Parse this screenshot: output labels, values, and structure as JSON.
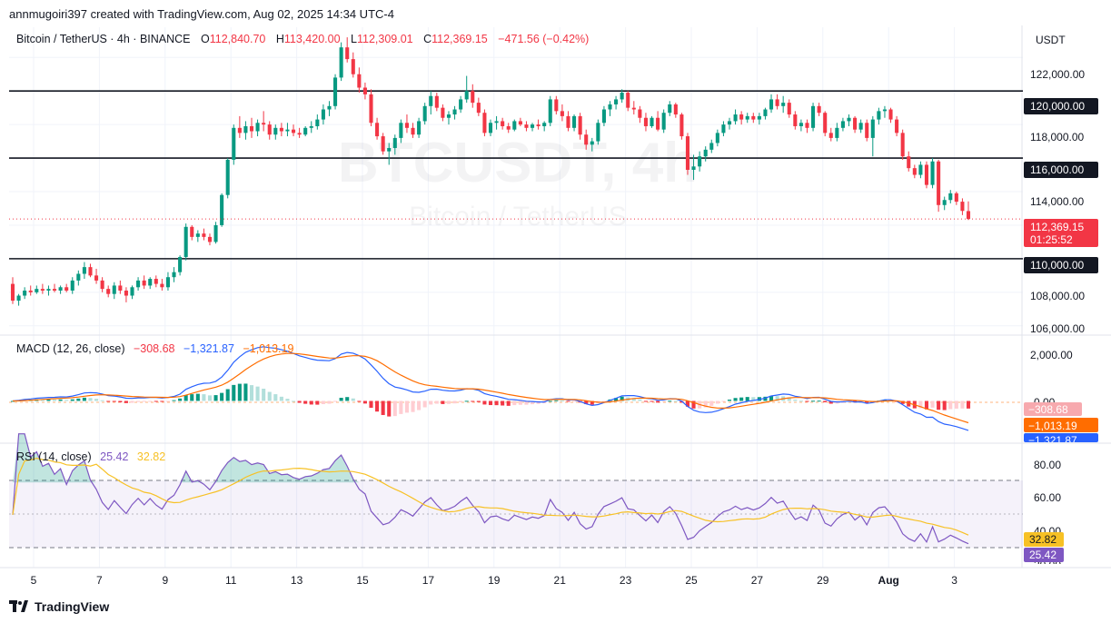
{
  "header": {
    "credit": "annmugoiri397 created with TradingView.com, Aug 02, 2025 14:34 UTC-4"
  },
  "legend": {
    "symbol": "Bitcoin / TetherUS · 4h · BINANCE",
    "open_label": "O",
    "open": "112,840.70",
    "high_label": "H",
    "high": "113,420.00",
    "low_label": "L",
    "low": "112,309.01",
    "close_label": "C",
    "close": "112,369.15",
    "change": "−471.56 (−0.42%)"
  },
  "watermark": {
    "main": "BTCUSDT, 4h",
    "sub": "Bitcoin / TetherUS"
  },
  "macd_legend": {
    "label": "MACD (12, 26, close)",
    "hist": "−308.68",
    "macd": "−1,321.87",
    "signal": "−1,013.19"
  },
  "rsi_legend": {
    "label": "RSI (14, close)",
    "rsi": "25.42",
    "ma": "32.82"
  },
  "price_axis": {
    "currency": "USDT",
    "ticks": [
      "122,000.00",
      "118,000.00",
      "114,000.00",
      "108,000.00",
      "106,000.00"
    ],
    "levels": [
      "120,000.00",
      "116,000.00",
      "110,000.00"
    ],
    "last_price": "112,369.15",
    "countdown": "01:25:52"
  },
  "macd_axis": {
    "ticks": [
      "2,000.00",
      "0.00"
    ],
    "hist_badge": "−308.68",
    "signal_badge": "−1,013.19",
    "macd_badge": "−1,321.87"
  },
  "rsi_axis": {
    "ticks": [
      "80.00",
      "60.00",
      "40.00",
      "20.00"
    ],
    "ma_badge": "32.82",
    "rsi_badge": "25.42"
  },
  "time_axis": {
    "labels": [
      "5",
      "7",
      "9",
      "11",
      "13",
      "15",
      "17",
      "19",
      "21",
      "23",
      "25",
      "27",
      "29",
      "Aug",
      "3"
    ]
  },
  "footer": {
    "brand": "TradingView"
  },
  "colors": {
    "up": "#089981",
    "down": "#f23645",
    "macd": "#2962ff",
    "signal": "#ff6d00",
    "rsi": "#7e57c2",
    "rsi_ma": "#f7c125"
  },
  "chart_data": {
    "type": "candlestick",
    "symbol": "BTCUSDT",
    "interval": "4h",
    "ylim": [
      105500,
      123800
    ],
    "horizontal_levels": [
      120000,
      116000,
      110000
    ],
    "candles": [
      [
        108500,
        108900,
        107300,
        107500
      ],
      [
        107500,
        107900,
        107200,
        107800
      ],
      [
        107800,
        108300,
        107600,
        108100
      ],
      [
        108100,
        108400,
        107800,
        108000
      ],
      [
        108000,
        108400,
        107900,
        108200
      ],
      [
        108200,
        108500,
        107900,
        108100
      ],
      [
        108100,
        108400,
        107800,
        108200
      ],
      [
        108200,
        108500,
        108000,
        108100
      ],
      [
        108100,
        108400,
        107900,
        108300
      ],
      [
        108300,
        108500,
        108000,
        108100
      ],
      [
        108100,
        108900,
        107900,
        108700
      ],
      [
        108700,
        109300,
        108400,
        109100
      ],
      [
        109100,
        109800,
        108800,
        109500
      ],
      [
        109500,
        109700,
        108900,
        109000
      ],
      [
        109000,
        109400,
        108500,
        108700
      ],
      [
        108700,
        108900,
        108000,
        108200
      ],
      [
        108200,
        108400,
        107700,
        107900
      ],
      [
        107900,
        108600,
        107600,
        108400
      ],
      [
        108400,
        108700,
        107900,
        108100
      ],
      [
        108100,
        108300,
        107400,
        107800
      ],
      [
        107800,
        108400,
        107600,
        108300
      ],
      [
        108300,
        108900,
        108100,
        108700
      ],
      [
        108700,
        109000,
        108200,
        108400
      ],
      [
        108400,
        108900,
        108200,
        108800
      ],
      [
        108800,
        109000,
        108300,
        108500
      ],
      [
        108500,
        108800,
        108100,
        108300
      ],
      [
        108300,
        109200,
        108100,
        108900
      ],
      [
        108900,
        109500,
        108600,
        109200
      ],
      [
        109200,
        110200,
        109000,
        110100
      ],
      [
        110100,
        112100,
        109900,
        111900
      ],
      [
        111900,
        112000,
        111100,
        111300
      ],
      [
        111300,
        111700,
        111000,
        111500
      ],
      [
        111500,
        111800,
        111100,
        111300
      ],
      [
        111300,
        111500,
        110800,
        111000
      ],
      [
        111000,
        112200,
        110900,
        112000
      ],
      [
        112000,
        113900,
        111900,
        113800
      ],
      [
        113800,
        116000,
        113600,
        115900
      ],
      [
        115900,
        118000,
        115600,
        117800
      ],
      [
        117800,
        118500,
        117200,
        117500
      ],
      [
        117500,
        118200,
        117100,
        117900
      ],
      [
        117900,
        118400,
        117200,
        117600
      ],
      [
        117600,
        118300,
        117300,
        118100
      ],
      [
        118100,
        118800,
        117600,
        118000
      ],
      [
        118000,
        118200,
        117100,
        117400
      ],
      [
        117400,
        118000,
        117100,
        117800
      ],
      [
        117800,
        118100,
        117300,
        117600
      ],
      [
        117600,
        118100,
        117300,
        117700
      ],
      [
        117700,
        118000,
        117300,
        117500
      ],
      [
        117500,
        117800,
        117200,
        117400
      ],
      [
        117400,
        117900,
        117300,
        117800
      ],
      [
        117800,
        118200,
        117500,
        117900
      ],
      [
        117900,
        118600,
        117700,
        118300
      ],
      [
        118300,
        119200,
        118000,
        118900
      ],
      [
        118900,
        119400,
        118500,
        119100
      ],
      [
        119100,
        121000,
        118900,
        120800
      ],
      [
        120800,
        122900,
        120600,
        122600
      ],
      [
        122600,
        123200,
        121700,
        121900
      ],
      [
        121900,
        122300,
        120800,
        121000
      ],
      [
        121000,
        121400,
        119900,
        120200
      ],
      [
        120200,
        120500,
        119500,
        119800
      ],
      [
        119800,
        120100,
        117900,
        118100
      ],
      [
        118100,
        118400,
        117100,
        117300
      ],
      [
        117300,
        117500,
        116200,
        116400
      ],
      [
        116400,
        116900,
        115600,
        116600
      ],
      [
        116600,
        117400,
        116200,
        117200
      ],
      [
        117200,
        118300,
        116900,
        118100
      ],
      [
        118100,
        118600,
        117500,
        117800
      ],
      [
        117800,
        118100,
        117200,
        117400
      ],
      [
        117400,
        118400,
        117200,
        118200
      ],
      [
        118200,
        119300,
        118000,
        119100
      ],
      [
        119100,
        120000,
        118600,
        119700
      ],
      [
        119700,
        119900,
        118800,
        119000
      ],
      [
        119000,
        119200,
        118200,
        118400
      ],
      [
        118400,
        118800,
        118000,
        118600
      ],
      [
        118600,
        119100,
        118300,
        118900
      ],
      [
        118900,
        119700,
        118700,
        119500
      ],
      [
        119500,
        120900,
        119300,
        120000
      ],
      [
        120000,
        120400,
        119000,
        119300
      ],
      [
        119300,
        119600,
        118500,
        118700
      ],
      [
        118700,
        118900,
        117300,
        117500
      ],
      [
        117500,
        118300,
        117300,
        118100
      ],
      [
        118100,
        118500,
        117700,
        118200
      ],
      [
        118200,
        118400,
        117700,
        117900
      ],
      [
        117900,
        118100,
        117500,
        117700
      ],
      [
        117700,
        118300,
        117600,
        118200
      ],
      [
        118200,
        118400,
        117900,
        118000
      ],
      [
        118000,
        118200,
        117600,
        117800
      ],
      [
        117800,
        118100,
        117600,
        118000
      ],
      [
        118000,
        118300,
        117700,
        117900
      ],
      [
        117900,
        118200,
        117600,
        118100
      ],
      [
        118100,
        119700,
        117900,
        119500
      ],
      [
        119500,
        119700,
        118600,
        118800
      ],
      [
        118800,
        119200,
        118200,
        118500
      ],
      [
        118500,
        118800,
        117600,
        117800
      ],
      [
        117800,
        118600,
        117600,
        118500
      ],
      [
        118500,
        118700,
        117100,
        117400
      ],
      [
        117400,
        117700,
        116500,
        116800
      ],
      [
        116800,
        117200,
        116400,
        117000
      ],
      [
        117000,
        118300,
        116800,
        118100
      ],
      [
        118100,
        119100,
        117900,
        118900
      ],
      [
        118900,
        119400,
        118500,
        119200
      ],
      [
        119200,
        119700,
        118900,
        119500
      ],
      [
        119500,
        120100,
        119300,
        119900
      ],
      [
        119900,
        120000,
        118800,
        119000
      ],
      [
        119000,
        119400,
        118600,
        118900
      ],
      [
        118900,
        119100,
        118100,
        118400
      ],
      [
        118400,
        118700,
        117600,
        117900
      ],
      [
        117900,
        118500,
        117800,
        118400
      ],
      [
        118400,
        118800,
        117600,
        117700
      ],
      [
        117700,
        118900,
        117500,
        118700
      ],
      [
        118700,
        119400,
        118500,
        119200
      ],
      [
        119200,
        119300,
        118400,
        118600
      ],
      [
        118600,
        118700,
        117100,
        117300
      ],
      [
        117300,
        117500,
        115000,
        115300
      ],
      [
        115300,
        116200,
        114700,
        115500
      ],
      [
        115500,
        116400,
        115200,
        116100
      ],
      [
        116100,
        116700,
        115800,
        116500
      ],
      [
        116500,
        117100,
        116300,
        116900
      ],
      [
        116900,
        117700,
        116700,
        117500
      ],
      [
        117500,
        118200,
        117300,
        118000
      ],
      [
        118000,
        118400,
        117700,
        118200
      ],
      [
        118200,
        118900,
        118000,
        118600
      ],
      [
        118600,
        118800,
        118000,
        118300
      ],
      [
        118300,
        118700,
        118100,
        118500
      ],
      [
        118500,
        118700,
        118100,
        118300
      ],
      [
        118300,
        118700,
        118000,
        118500
      ],
      [
        118500,
        119000,
        118300,
        118900
      ],
      [
        118900,
        119800,
        118700,
        119500
      ],
      [
        119500,
        119800,
        118900,
        119100
      ],
      [
        119100,
        119700,
        118700,
        119300
      ],
      [
        119300,
        119500,
        118400,
        118600
      ],
      [
        118600,
        118800,
        117700,
        117900
      ],
      [
        117900,
        118300,
        117600,
        118100
      ],
      [
        118100,
        118300,
        117500,
        117800
      ],
      [
        117800,
        119300,
        117600,
        119100
      ],
      [
        119100,
        119300,
        118500,
        118700
      ],
      [
        118700,
        118800,
        117300,
        117500
      ],
      [
        117500,
        117800,
        117000,
        117200
      ],
      [
        117200,
        118100,
        117000,
        117800
      ],
      [
        117800,
        118400,
        117600,
        118200
      ],
      [
        118200,
        118600,
        117900,
        118400
      ],
      [
        118400,
        118500,
        117500,
        117700
      ],
      [
        117700,
        118300,
        117500,
        118100
      ],
      [
        118100,
        118300,
        117000,
        117200
      ],
      [
        117200,
        118500,
        116100,
        118300
      ],
      [
        118300,
        119000,
        118000,
        118800
      ],
      [
        118800,
        119100,
        118400,
        118900
      ],
      [
        118900,
        119000,
        118100,
        118300
      ],
      [
        118300,
        118500,
        117300,
        117500
      ],
      [
        117500,
        117700,
        115900,
        116100
      ],
      [
        116100,
        116400,
        115200,
        115400
      ],
      [
        115400,
        115600,
        114800,
        115000
      ],
      [
        115000,
        115800,
        114800,
        115600
      ],
      [
        115600,
        115800,
        114200,
        114400
      ],
      [
        114400,
        116000,
        114200,
        115800
      ],
      [
        115800,
        115900,
        112800,
        113200
      ],
      [
        113200,
        113700,
        112900,
        113500
      ],
      [
        113500,
        114100,
        113300,
        113900
      ],
      [
        113900,
        114000,
        113200,
        113400
      ],
      [
        113400,
        113600,
        112600,
        112850
      ],
      [
        112840,
        113420,
        112309,
        112369
      ]
    ],
    "last_price": 112369.15,
    "macd": {
      "fast": 12,
      "slow": 26,
      "source": "close",
      "hist_last": -308.68,
      "macd_last": -1321.87,
      "signal_last": -1013.19,
      "ylim": [
        -1900,
        2900
      ]
    },
    "rsi": {
      "length": 14,
      "source": "close",
      "rsi_last": 25.42,
      "ma_last": 32.82,
      "bands": [
        70,
        50,
        30
      ],
      "ylim": [
        18,
        92
      ]
    }
  }
}
